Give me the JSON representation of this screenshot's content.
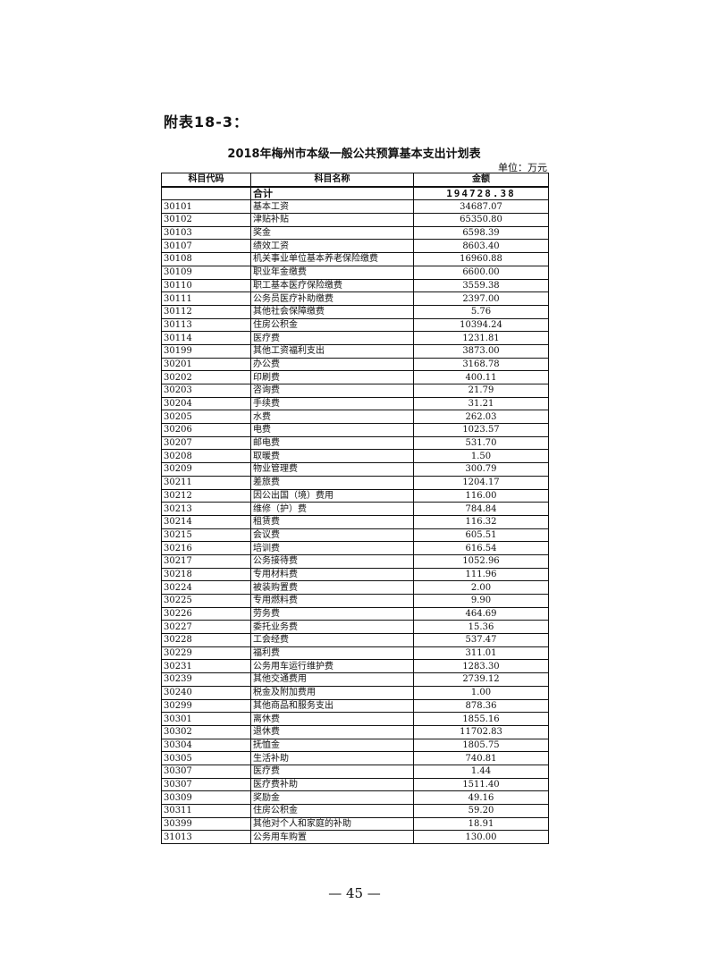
{
  "appendix_label": "附表18-3：",
  "title": "2018年梅州市本级一般公共预算基本支出计划表",
  "unit": "单位：万元",
  "table": {
    "headers": [
      "科目代码",
      "科目名称",
      "金额"
    ],
    "total": {
      "code": "",
      "name": "合计",
      "amount": "194728.38"
    },
    "rows": [
      {
        "code": "30101",
        "name": "基本工资",
        "amount": "34687.07"
      },
      {
        "code": "30102",
        "name": "津贴补贴",
        "amount": "65350.80"
      },
      {
        "code": "30103",
        "name": "奖金",
        "amount": "6598.39"
      },
      {
        "code": "30107",
        "name": "绩效工资",
        "amount": "8603.40"
      },
      {
        "code": "30108",
        "name": "机关事业单位基本养老保险缴费",
        "amount": "16960.88"
      },
      {
        "code": "30109",
        "name": "职业年金缴费",
        "amount": "6600.00"
      },
      {
        "code": "30110",
        "name": "职工基本医疗保险缴费",
        "amount": "3559.38"
      },
      {
        "code": "30111",
        "name": "公务员医疗补助缴费",
        "amount": "2397.00"
      },
      {
        "code": "30112",
        "name": "其他社会保障缴费",
        "amount": "5.76"
      },
      {
        "code": "30113",
        "name": "住房公积金",
        "amount": "10394.24"
      },
      {
        "code": "30114",
        "name": "医疗费",
        "amount": "1231.81"
      },
      {
        "code": "30199",
        "name": "其他工资福利支出",
        "amount": "3873.00"
      },
      {
        "code": "30201",
        "name": "办公费",
        "amount": "3168.78"
      },
      {
        "code": "30202",
        "name": "印刷费",
        "amount": "400.11"
      },
      {
        "code": "30203",
        "name": "咨询费",
        "amount": "21.79"
      },
      {
        "code": "30204",
        "name": "手续费",
        "amount": "31.21"
      },
      {
        "code": "30205",
        "name": "水费",
        "amount": "262.03"
      },
      {
        "code": "30206",
        "name": "电费",
        "amount": "1023.57"
      },
      {
        "code": "30207",
        "name": "邮电费",
        "amount": "531.70"
      },
      {
        "code": "30208",
        "name": "取暖费",
        "amount": "1.50"
      },
      {
        "code": "30209",
        "name": "物业管理费",
        "amount": "300.79"
      },
      {
        "code": "30211",
        "name": "差旅费",
        "amount": "1204.17"
      },
      {
        "code": "30212",
        "name": "因公出国（境）费用",
        "amount": "116.00"
      },
      {
        "code": "30213",
        "name": "维修（护）费",
        "amount": "784.84"
      },
      {
        "code": "30214",
        "name": "租赁费",
        "amount": "116.32"
      },
      {
        "code": "30215",
        "name": "会议费",
        "amount": "605.51"
      },
      {
        "code": "30216",
        "name": "培训费",
        "amount": "616.54"
      },
      {
        "code": "30217",
        "name": "公务接待费",
        "amount": "1052.96"
      },
      {
        "code": "30218",
        "name": "专用材料费",
        "amount": "111.96"
      },
      {
        "code": "30224",
        "name": "被装购置费",
        "amount": "2.00"
      },
      {
        "code": "30225",
        "name": "专用燃料费",
        "amount": "9.90"
      },
      {
        "code": "30226",
        "name": "劳务费",
        "amount": "464.69"
      },
      {
        "code": "30227",
        "name": "委托业务费",
        "amount": "15.36"
      },
      {
        "code": "30228",
        "name": "工会经费",
        "amount": "537.47"
      },
      {
        "code": "30229",
        "name": "福利费",
        "amount": "311.01"
      },
      {
        "code": "30231",
        "name": "公务用车运行维护费",
        "amount": "1283.30"
      },
      {
        "code": "30239",
        "name": "其他交通费用",
        "amount": "2739.12"
      },
      {
        "code": "30240",
        "name": "税金及附加费用",
        "amount": "1.00"
      },
      {
        "code": "30299",
        "name": "其他商品和服务支出",
        "amount": "878.36"
      },
      {
        "code": "30301",
        "name": "离休费",
        "amount": "1855.16"
      },
      {
        "code": "30302",
        "name": "退休费",
        "amount": "11702.83"
      },
      {
        "code": "30304",
        "name": "抚恤金",
        "amount": "1805.75"
      },
      {
        "code": "30305",
        "name": "生活补助",
        "amount": "740.81"
      },
      {
        "code": "30307",
        "name": "医疗费",
        "amount": "1.44"
      },
      {
        "code": "30307",
        "name": "医疗费补助",
        "amount": "1511.40"
      },
      {
        "code": "30309",
        "name": "奖励金",
        "amount": "49.16"
      },
      {
        "code": "30311",
        "name": "住房公积金",
        "amount": "59.20"
      },
      {
        "code": "30399",
        "name": "其他对个人和家庭的补助",
        "amount": "18.91"
      },
      {
        "code": "31013",
        "name": "公务用车购置",
        "amount": "130.00"
      }
    ]
  },
  "page_number": "— 45 —"
}
